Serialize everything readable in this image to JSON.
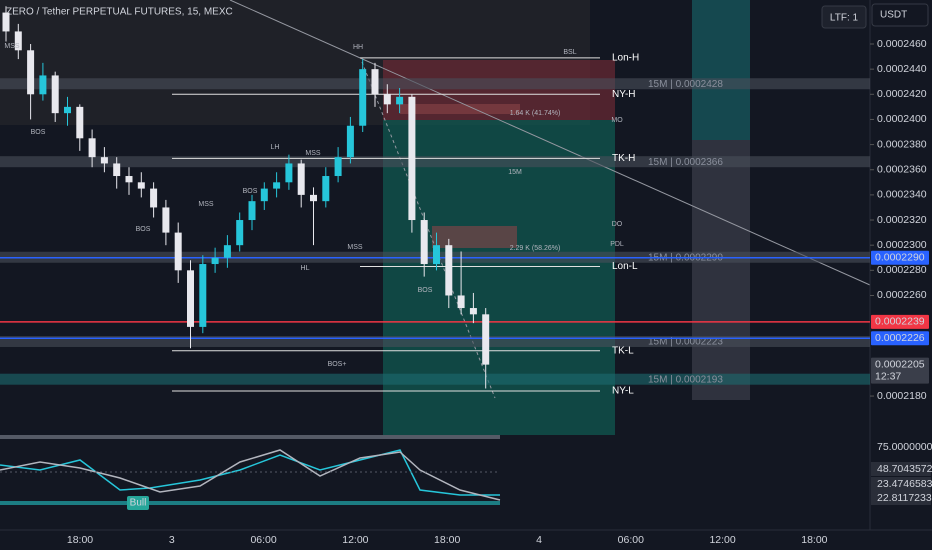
{
  "header": {
    "title": "ZERO / Tether PERPETUAL FUTURES, 15, MEXC",
    "ltf": "LTF: 1",
    "currency": "USDT"
  },
  "chart_data": {
    "type": "candlestick",
    "up_color": "#26c6da",
    "down_color": "#e8e8ee",
    "candles": [
      [
        0.0002485,
        0.000249,
        0.0002462,
        0.000247
      ],
      [
        0.000247,
        0.0002476,
        0.0002448,
        0.0002455
      ],
      [
        0.0002455,
        0.000246,
        0.00024,
        0.000242
      ],
      [
        0.000242,
        0.0002445,
        0.0002415,
        0.0002435
      ],
      [
        0.0002435,
        0.0002438,
        0.0002398,
        0.0002405
      ],
      [
        0.0002405,
        0.0002418,
        0.0002395,
        0.000241
      ],
      [
        0.000241,
        0.0002412,
        0.0002375,
        0.0002385
      ],
      [
        0.0002385,
        0.0002392,
        0.0002362,
        0.000237
      ],
      [
        0.000237,
        0.0002378,
        0.0002358,
        0.0002365
      ],
      [
        0.0002365,
        0.000237,
        0.0002345,
        0.0002355
      ],
      [
        0.0002355,
        0.0002362,
        0.000234,
        0.000235
      ],
      [
        0.000235,
        0.0002358,
        0.0002338,
        0.0002345
      ],
      [
        0.0002345,
        0.000235,
        0.0002322,
        0.000233
      ],
      [
        0.000233,
        0.0002336,
        0.00023,
        0.000231
      ],
      [
        0.000231,
        0.0002318,
        0.000227,
        0.000228
      ],
      [
        0.000228,
        0.0002288,
        0.0002218,
        0.0002235
      ],
      [
        0.0002235,
        0.0002292,
        0.000223,
        0.0002285
      ],
      [
        0.0002285,
        0.0002298,
        0.0002278,
        0.000229
      ],
      [
        0.000229,
        0.0002308,
        0.0002282,
        0.00023
      ],
      [
        0.00023,
        0.0002326,
        0.0002295,
        0.000232
      ],
      [
        0.000232,
        0.000234,
        0.0002312,
        0.0002335
      ],
      [
        0.0002335,
        0.000235,
        0.0002328,
        0.0002345
      ],
      [
        0.0002345,
        0.0002358,
        0.0002338,
        0.000235
      ],
      [
        0.000235,
        0.0002372,
        0.0002344,
        0.0002365
      ],
      [
        0.0002365,
        0.0002368,
        0.000233,
        0.000234
      ],
      [
        0.000234,
        0.0002346,
        0.00023,
        0.0002335
      ],
      [
        0.0002335,
        0.0002362,
        0.000233,
        0.0002355
      ],
      [
        0.0002355,
        0.0002378,
        0.000235,
        0.000237
      ],
      [
        0.000237,
        0.0002402,
        0.0002365,
        0.0002395
      ],
      [
        0.0002395,
        0.0002448,
        0.000239,
        0.000244
      ],
      [
        0.000244,
        0.0002445,
        0.000241,
        0.000242
      ],
      [
        0.000242,
        0.0002428,
        0.0002405,
        0.0002412
      ],
      [
        0.0002412,
        0.0002425,
        0.0002405,
        0.0002418
      ],
      [
        0.0002418,
        0.000242,
        0.000231,
        0.000232
      ],
      [
        0.000232,
        0.0002326,
        0.0002275,
        0.0002285
      ],
      [
        0.0002285,
        0.000231,
        0.000228,
        0.00023
      ],
      [
        0.00023,
        0.0002305,
        0.000225,
        0.000226
      ],
      [
        0.000226,
        0.0002295,
        0.0002245,
        0.000225
      ],
      [
        0.000225,
        0.0002262,
        0.0002238,
        0.0002245
      ],
      [
        0.0002245,
        0.000225,
        0.0002186,
        0.0002205
      ]
    ],
    "ylim": [
      0.0002153,
      0.0002495
    ],
    "yticks": [
      {
        "value": 0.000246,
        "label": "0.0002460"
      },
      {
        "value": 0.000244,
        "label": "0.0002440"
      },
      {
        "value": 0.000242,
        "label": "0.0002420"
      },
      {
        "value": 0.00024,
        "label": "0.0002400"
      },
      {
        "value": 0.000238,
        "label": "0.0002380"
      },
      {
        "value": 0.000236,
        "label": "0.0002360"
      },
      {
        "value": 0.000234,
        "label": "0.0002340"
      },
      {
        "value": 0.000232,
        "label": "0.0002320"
      },
      {
        "value": 0.00023,
        "label": "0.0002300"
      },
      {
        "value": 0.000228,
        "label": "0.0002280"
      },
      {
        "value": 0.000226,
        "label": "0.0002260"
      },
      {
        "value": 0.000218,
        "label": "0.0002180"
      }
    ],
    "time_axis": [
      "18:00",
      "3",
      "06:00",
      "12:00",
      "18:00",
      "4",
      "06:00",
      "12:00",
      "18:00"
    ],
    "levels": [
      {
        "name": "Lon-H",
        "value": 0.0002449
      },
      {
        "name": "NY-H",
        "value": 0.000242
      },
      {
        "name": "TK-H",
        "value": 0.0002369
      },
      {
        "name": "Lon-L",
        "value": 0.0002283
      },
      {
        "name": "TK-L",
        "value": 0.0002216
      },
      {
        "name": "NY-L",
        "value": 0.0002184
      }
    ],
    "zones": [
      {
        "label": "15M | 0.0002428",
        "value": 0.0002428
      },
      {
        "label": "15M | 0.0002366",
        "value": 0.0002366
      },
      {
        "label": "15M | 0.0002290",
        "value": 0.000229
      },
      {
        "label": "15M | 0.0002223",
        "value": 0.0002223
      },
      {
        "label": "15M | 0.0002193",
        "value": 0.0002193
      }
    ],
    "price_tags": [
      {
        "value": 0.000229,
        "label": "0.0002290",
        "color": "#2962ff"
      },
      {
        "value": 0.0002239,
        "label": "0.0002239",
        "color": "#f23645"
      },
      {
        "value": 0.0002226,
        "label": "0.0002226",
        "color": "#2962ff"
      },
      {
        "value": 0.0002205,
        "label": "0.0002205",
        "color": "#3a3e4a"
      }
    ],
    "countdown": "12:37",
    "annotations": [
      "HH",
      "LH",
      "MSS",
      "BOS",
      "BOS",
      "BOS",
      "MSS",
      "MSS",
      "HL",
      "BOS",
      "BOS+",
      "MSS",
      "BSL",
      "MO",
      "DO",
      "PDL",
      "15M",
      "1.64 K (41.74%)",
      "2.29 K (58.26%)"
    ],
    "indicator": {
      "badge": "Bull",
      "axis_labels": [
        "75.0000000",
        "48.7043572",
        "23.4746583",
        "22.8117233"
      ]
    }
  }
}
